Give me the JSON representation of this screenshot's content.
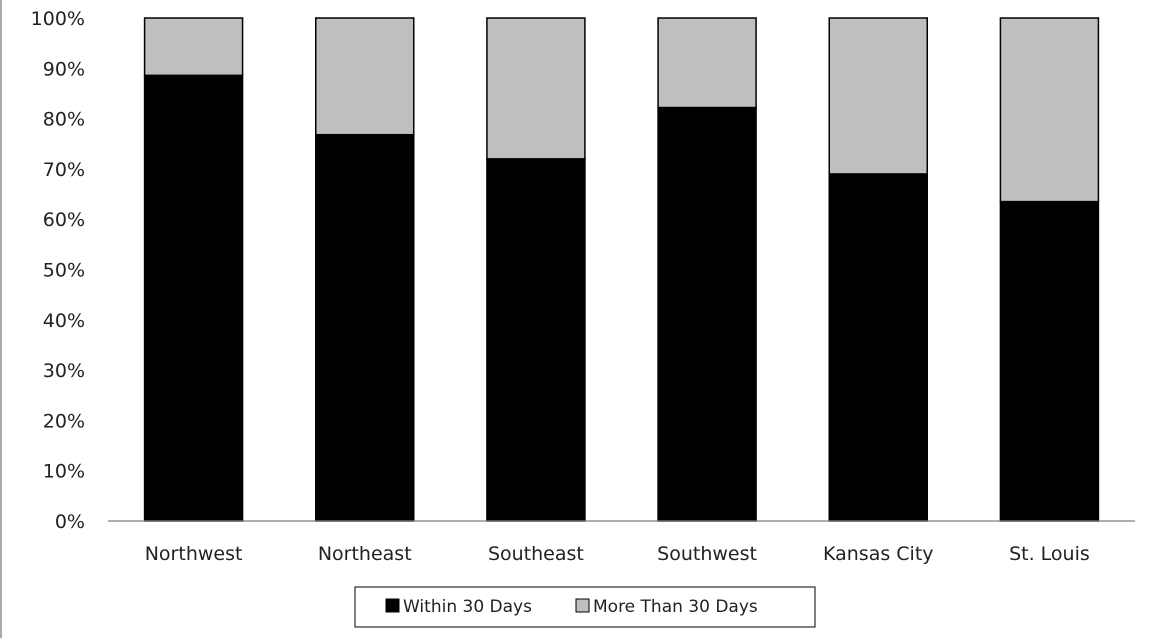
{
  "chart_data": {
    "type": "bar",
    "stacked": true,
    "categories": [
      "Northwest",
      "Northeast",
      "Southeast",
      "Southwest",
      "Kansas City",
      "St. Louis"
    ],
    "series": [
      {
        "name": "Within 30 Days",
        "values": [
          88.6,
          76.8,
          72.0,
          82.2,
          69.0,
          63.5
        ],
        "color": "#000000"
      },
      {
        "name": "More Than 30 Days",
        "values": [
          11.4,
          23.2,
          28.0,
          17.8,
          31.0,
          36.5
        ],
        "color": "#bfbfbf"
      }
    ],
    "yticks": [
      "0%",
      "10%",
      "20%",
      "30%",
      "40%",
      "50%",
      "60%",
      "70%",
      "80%",
      "90%",
      "100%"
    ],
    "ylim": [
      0,
      100
    ],
    "grid": false,
    "legend_position": "bottom"
  }
}
